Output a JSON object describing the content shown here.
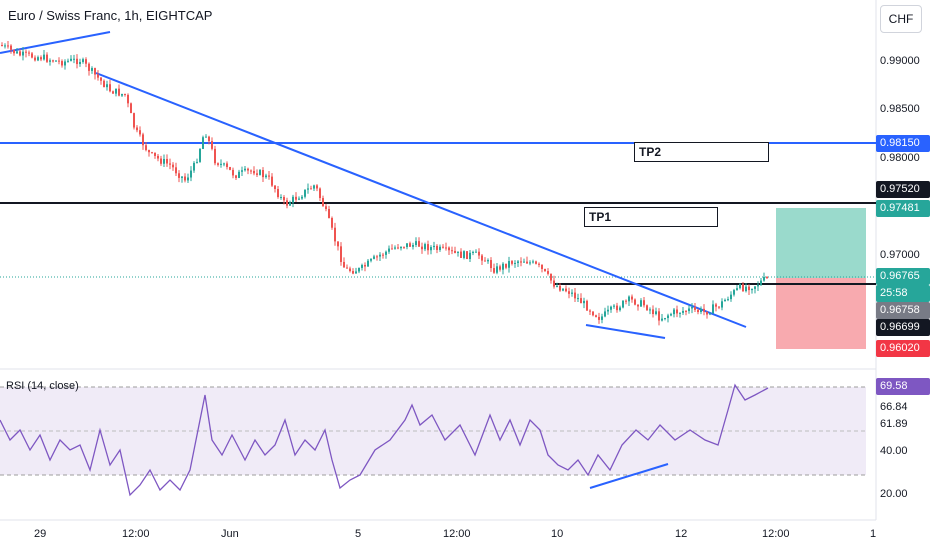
{
  "chart_title": "Euro / Swiss Franc, 1h, EIGHTCAP",
  "currency": "CHF",
  "price_axis_labels": [
    "0.99000",
    "0.98500",
    "0.98000",
    "0.97000"
  ],
  "price_tags": {
    "tp2_level": "0.98150",
    "black_level": "0.97520",
    "tp1_level": "0.97481",
    "last_price": "0.96765",
    "countdown": "25:58",
    "entry": "0.96758",
    "sl_line": "0.96699",
    "stop": "0.96020"
  },
  "annotations": {
    "tp1": "TP1",
    "tp2": "TP2"
  },
  "rsi": {
    "label": "RSI (14, close)",
    "current": "69.58",
    "axis_labels": [
      "66.84",
      "61.89",
      "40.00",
      "20.00"
    ]
  },
  "time_axis_labels": [
    "29",
    "12:00",
    "Jun",
    "5",
    "12:00",
    "10",
    "12",
    "12:00",
    "1"
  ],
  "colors": {
    "bull": "#26a69a",
    "bear": "#ef5350",
    "trendline": "#2962ff",
    "tp2_line": "#2962ff",
    "rsi_line": "#7e57c2",
    "profit_zone": "#8fd6c6",
    "loss_zone": "#f7a1a6"
  },
  "chart_data": {
    "type": "line",
    "title": "Euro / Swiss Franc, 1h, EIGHTCAP",
    "ylim": [
      0.9595,
      0.9935
    ],
    "series": [
      {
        "name": "",
        "x": [
          "29",
          "12:00",
          "Jun",
          "5",
          "12:00",
          "10",
          "12",
          "12:00"
        ],
        "values": [
          0.9915,
          0.9875,
          0.9838,
          0.97,
          0.972,
          0.968,
          0.9665,
          0.9677
        ]
      }
    ],
    "levels": [
      0.9815,
      0.9752,
      0.97481,
      0.96765,
      0.96758,
      0.96699,
      0.9602
    ],
    "rsi_last": 69.58
  }
}
